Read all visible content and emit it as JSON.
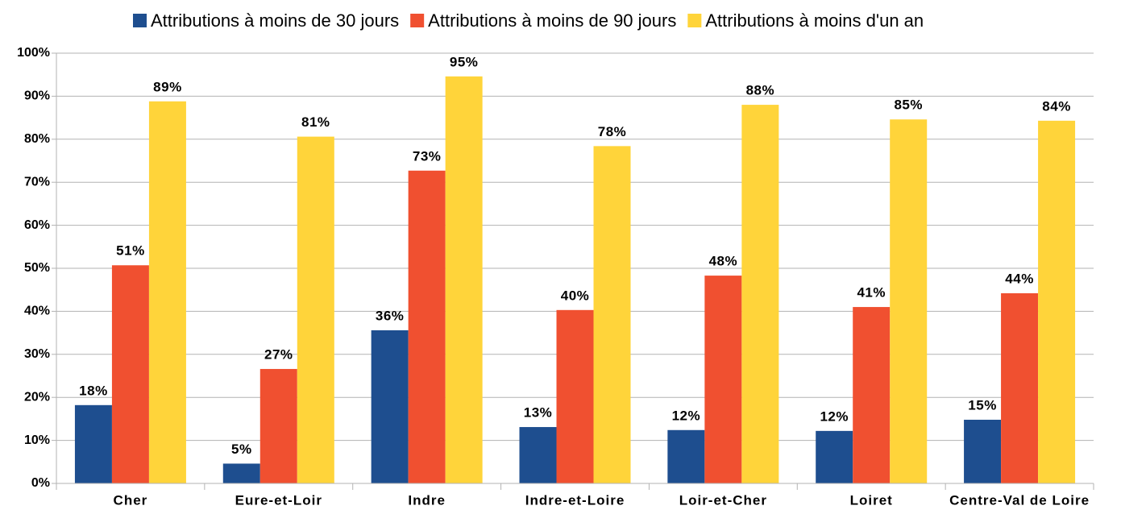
{
  "chart_data": {
    "type": "bar",
    "categories": [
      "Cher",
      "Eure-et-Loir",
      "Indre",
      "Indre-et-Loire",
      "Loir-et-Cher",
      "Loiret",
      "Centre-Val de Loire"
    ],
    "series": [
      {
        "name": "Attributions à moins de 30 jours",
        "color": "#1e4e8f",
        "values": [
          18.2,
          4.6,
          35.6,
          13.1,
          12.4,
          12.2,
          14.8
        ],
        "value_labels": [
          "18%",
          "5%",
          "36%",
          "13%",
          "12%",
          "12%",
          "15%"
        ]
      },
      {
        "name": "Attributions à moins de 90 jours",
        "color": "#f05030",
        "values": [
          50.7,
          26.6,
          72.7,
          40.3,
          48.3,
          41.0,
          44.2
        ],
        "value_labels": [
          "51%",
          "27%",
          "73%",
          "40%",
          "48%",
          "41%",
          "44%"
        ]
      },
      {
        "name": "Attributions à moins d'un an",
        "color": "#ffd43a",
        "values": [
          88.8,
          80.6,
          94.6,
          78.4,
          88.0,
          84.6,
          84.3
        ],
        "value_labels": [
          "89%",
          "81%",
          "95%",
          "78%",
          "88%",
          "85%",
          "84%"
        ]
      }
    ],
    "ylim": [
      0,
      100
    ],
    "yticks": [
      {
        "value": 0,
        "label": "0%"
      },
      {
        "value": 10,
        "label": "10%"
      },
      {
        "value": 20,
        "label": "20%"
      },
      {
        "value": 30,
        "label": "30%"
      },
      {
        "value": 40,
        "label": "40%"
      },
      {
        "value": 50,
        "label": "50%"
      },
      {
        "value": 60,
        "label": "60%"
      },
      {
        "value": 70,
        "label": "70%"
      },
      {
        "value": 80,
        "label": "80%"
      },
      {
        "value": 90,
        "label": "90%"
      },
      {
        "value": 100,
        "label": "100%"
      }
    ],
    "grid": true,
    "legend": "top"
  }
}
